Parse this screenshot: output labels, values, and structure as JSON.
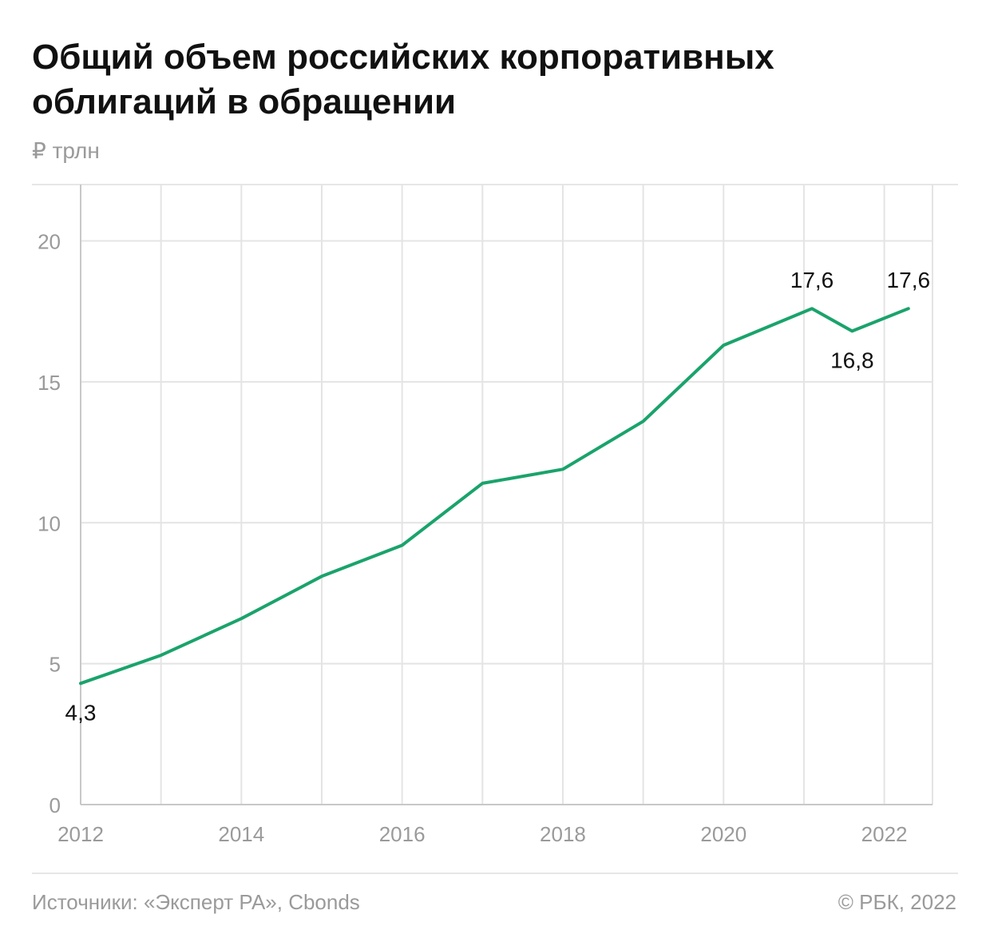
{
  "title": "Общий объем российских корпоративных облигаций в обращении",
  "unit_label": "₽ трлн",
  "footer": {
    "source": "Источники: «Эксперт РА», Cbonds",
    "copyright": "© РБК, 2022"
  },
  "colors": {
    "line": "#1aa36b",
    "grid": "#e4e4e4",
    "axis": "#c8c8c8",
    "tick_text": "#9a9a9a"
  },
  "chart_data": {
    "type": "line",
    "title": "Общий объем российских корпоративных облигаций в обращении",
    "ylabel": "₽ трлн",
    "xlabel": "",
    "ylim": [
      0,
      22
    ],
    "xlim": [
      2012,
      2022.6
    ],
    "y_ticks": [
      0,
      5,
      10,
      15,
      20
    ],
    "x_ticks": [
      2012,
      2013,
      2014,
      2015,
      2016,
      2017,
      2018,
      2019,
      2020,
      2021,
      2022
    ],
    "x_tick_labels": [
      "2012",
      "",
      "2014",
      "",
      "2016",
      "",
      "2018",
      "",
      "2020",
      "",
      "2022"
    ],
    "grid": true,
    "series": [
      {
        "x": [
          2012,
          2013,
          2014,
          2015,
          2016,
          2017,
          2018,
          2019,
          2020,
          2021.1,
          2021.6,
          2022.3
        ],
        "y": [
          4.3,
          5.3,
          6.6,
          8.1,
          9.2,
          11.4,
          11.9,
          13.6,
          16.3,
          17.6,
          16.8,
          17.6
        ]
      }
    ],
    "annotations": [
      {
        "x": 2012,
        "y": 4.3,
        "text": "4,3",
        "position": "below"
      },
      {
        "x": 2021.1,
        "y": 17.6,
        "text": "17,6",
        "position": "above"
      },
      {
        "x": 2021.6,
        "y": 16.8,
        "text": "16,8",
        "position": "below"
      },
      {
        "x": 2022.3,
        "y": 17.6,
        "text": "17,6",
        "position": "above"
      }
    ]
  }
}
